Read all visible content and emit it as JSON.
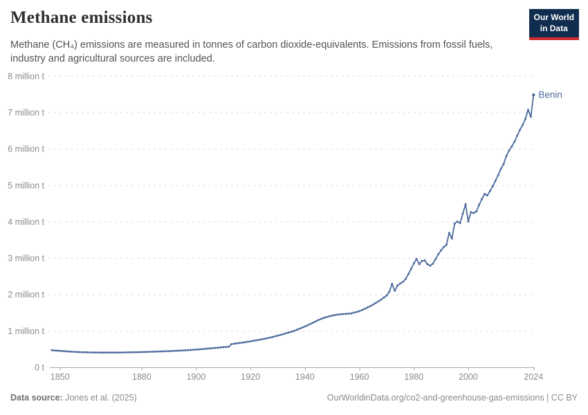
{
  "header": {
    "title": "Methane emissions",
    "subtitle_line1": "Methane (CH₄) emissions are measured in tonnes of carbon dioxide-equivalents. Emissions from fossil fuels,",
    "subtitle_line2": "industry and agricultural sources are included.",
    "logo": {
      "line1": "Our World",
      "line2": "in Data"
    }
  },
  "footer": {
    "source_label": "Data source:",
    "source_value": " Jones et al. (2025)",
    "right_text": "OurWorldinData.org/co2-and-greenhouse-gas-emissions | CC BY"
  },
  "chart_data": {
    "type": "line",
    "title": "Methane emissions",
    "unit_suffix": " million t",
    "entity_label": "Benin",
    "xlim": [
      1847,
      2024
    ],
    "ylim": [
      0,
      8
    ],
    "grid": true,
    "legend_position": "end-of-line",
    "x_ticks": [
      1850,
      1880,
      1900,
      1920,
      1940,
      1960,
      1980,
      2000,
      2024
    ],
    "y_ticks": [
      0,
      1,
      2,
      3,
      4,
      5,
      6,
      7,
      8
    ],
    "y_tick_labels": [
      "0 t",
      "1 million t",
      "2 million t",
      "3 million t",
      "4 million t",
      "5 million t",
      "6 million t",
      "7 million t",
      "8 million t"
    ],
    "line_color": "#4c6a9c",
    "grid_color": "#dbdbdb",
    "axis_color": "#a8a8a8",
    "tick_label_color": "#8a8a8a",
    "series": [
      {
        "name": "Benin",
        "x_start": 1847,
        "x_step": 1,
        "values": [
          0.47,
          0.46,
          0.455,
          0.45,
          0.445,
          0.44,
          0.435,
          0.43,
          0.425,
          0.42,
          0.418,
          0.415,
          0.413,
          0.41,
          0.408,
          0.407,
          0.406,
          0.405,
          0.405,
          0.404,
          0.404,
          0.404,
          0.404,
          0.405,
          0.405,
          0.406,
          0.407,
          0.408,
          0.41,
          0.411,
          0.413,
          0.414,
          0.416,
          0.418,
          0.42,
          0.422,
          0.425,
          0.427,
          0.43,
          0.432,
          0.435,
          0.438,
          0.44,
          0.443,
          0.447,
          0.45,
          0.454,
          0.458,
          0.462,
          0.466,
          0.47,
          0.475,
          0.48,
          0.486,
          0.492,
          0.498,
          0.504,
          0.51,
          0.517,
          0.524,
          0.531,
          0.538,
          0.545,
          0.552,
          0.558,
          0.563,
          0.635,
          0.647,
          0.657,
          0.667,
          0.677,
          0.688,
          0.7,
          0.712,
          0.725,
          0.738,
          0.752,
          0.766,
          0.78,
          0.796,
          0.812,
          0.83,
          0.85,
          0.87,
          0.89,
          0.91,
          0.932,
          0.954,
          0.976,
          1.0,
          1.03,
          1.06,
          1.09,
          1.12,
          1.155,
          1.19,
          1.225,
          1.262,
          1.3,
          1.33,
          1.358,
          1.38,
          1.4,
          1.42,
          1.434,
          1.445,
          1.454,
          1.46,
          1.466,
          1.472,
          1.48,
          1.5,
          1.52,
          1.54,
          1.572,
          1.607,
          1.643,
          1.68,
          1.72,
          1.764,
          1.81,
          1.86,
          1.913,
          1.97,
          2.07,
          2.29,
          2.1,
          2.245,
          2.3,
          2.345,
          2.425,
          2.56,
          2.7,
          2.85,
          2.975,
          2.83,
          2.92,
          2.932,
          2.83,
          2.79,
          2.845,
          2.97,
          3.105,
          3.21,
          3.3,
          3.365,
          3.69,
          3.535,
          3.945,
          4.0,
          3.96,
          4.21,
          4.48,
          4.005,
          4.26,
          4.235,
          4.28,
          4.46,
          4.62,
          4.76,
          4.72,
          4.84,
          4.97,
          5.12,
          5.28,
          5.45,
          5.58,
          5.8,
          5.95,
          6.06,
          6.2,
          6.36,
          6.52,
          6.66,
          6.82,
          7.07,
          6.88,
          7.48
        ]
      }
    ]
  }
}
